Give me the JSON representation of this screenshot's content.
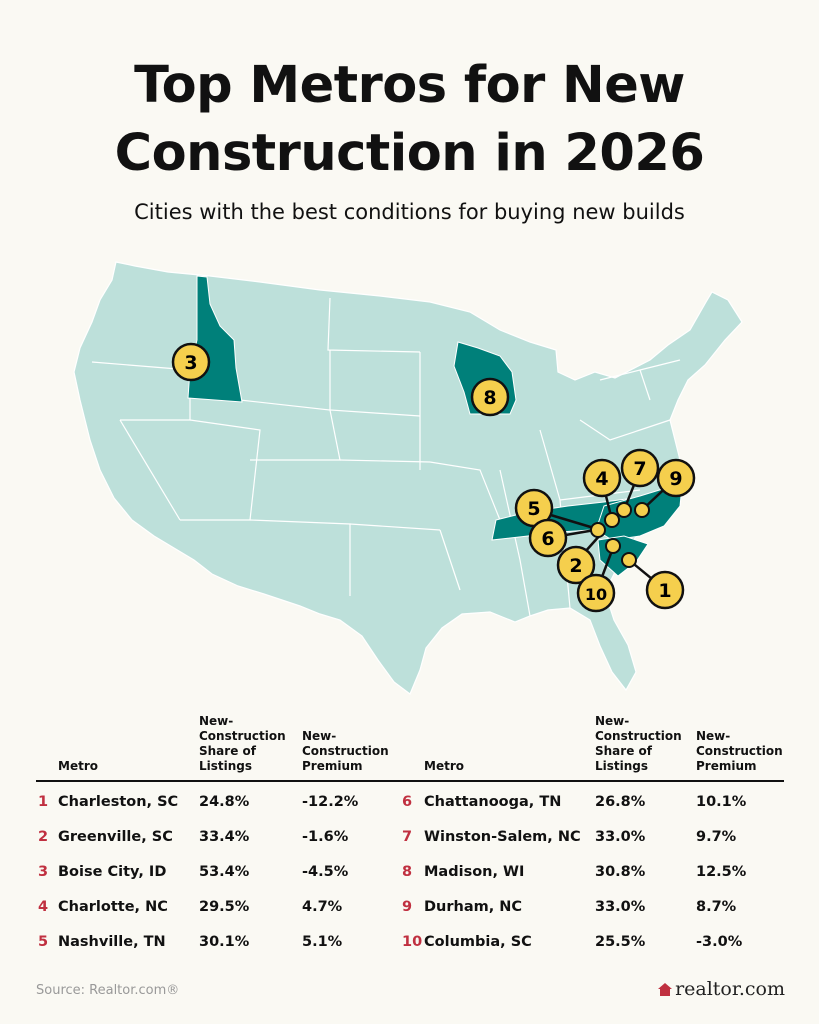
{
  "title_lines": [
    "Top Metros for New",
    "Construction in 2026"
  ],
  "subtitle": "Cities with the best conditions for buying new builds",
  "colors": {
    "map_base": "#bde0da",
    "highlight": "#00807a",
    "marker": "#f5cf4d",
    "rank": "#c03040",
    "background": "#faf9f3"
  },
  "map": {
    "highlighted_states": [
      "Idaho",
      "Wisconsin",
      "Tennessee",
      "North Carolina",
      "South Carolina"
    ],
    "markers": [
      {
        "rank": "1",
        "label": "1"
      },
      {
        "rank": "2",
        "label": "2"
      },
      {
        "rank": "3",
        "label": "3"
      },
      {
        "rank": "4",
        "label": "4"
      },
      {
        "rank": "5",
        "label": "5"
      },
      {
        "rank": "6",
        "label": "6"
      },
      {
        "rank": "7",
        "label": "7"
      },
      {
        "rank": "8",
        "label": "8"
      },
      {
        "rank": "9",
        "label": "9"
      },
      {
        "rank": "10",
        "label": "10"
      }
    ]
  },
  "table": {
    "headers": {
      "metro": "Metro",
      "share_1": "New-",
      "share_2": "Construction",
      "share_3": "Share of",
      "share_4": "Listings",
      "premium_1": "New-",
      "premium_2": "Construction",
      "premium_3": "Premium"
    },
    "left": [
      {
        "rank": "1",
        "metro": "Charleston, SC",
        "share": "24.8%",
        "premium": "-12.2%"
      },
      {
        "rank": "2",
        "metro": "Greenville, SC",
        "share": "33.4%",
        "premium": "-1.6%"
      },
      {
        "rank": "3",
        "metro": "Boise City, ID",
        "share": "53.4%",
        "premium": "-4.5%"
      },
      {
        "rank": "4",
        "metro": "Charlotte, NC",
        "share": "29.5%",
        "premium": "4.7%"
      },
      {
        "rank": "5",
        "metro": "Nashville, TN",
        "share": "30.1%",
        "premium": "5.1%"
      }
    ],
    "right": [
      {
        "rank": "6",
        "metro": "Chattanooga, TN",
        "share": "26.8%",
        "premium": "10.1%"
      },
      {
        "rank": "7",
        "metro": "Winston-Salem, NC",
        "share": "33.0%",
        "premium": "9.7%"
      },
      {
        "rank": "8",
        "metro": "Madison, WI",
        "share": "30.8%",
        "premium": "12.5%"
      },
      {
        "rank": "9",
        "metro": "Durham, NC",
        "share": "33.0%",
        "premium": "8.7%"
      },
      {
        "rank": "10",
        "metro": "Columbia, SC",
        "share": "25.5%",
        "premium": "-3.0%"
      }
    ]
  },
  "footer": {
    "source": "Source: Realtor.com®",
    "logo_text": "realtor.com"
  }
}
